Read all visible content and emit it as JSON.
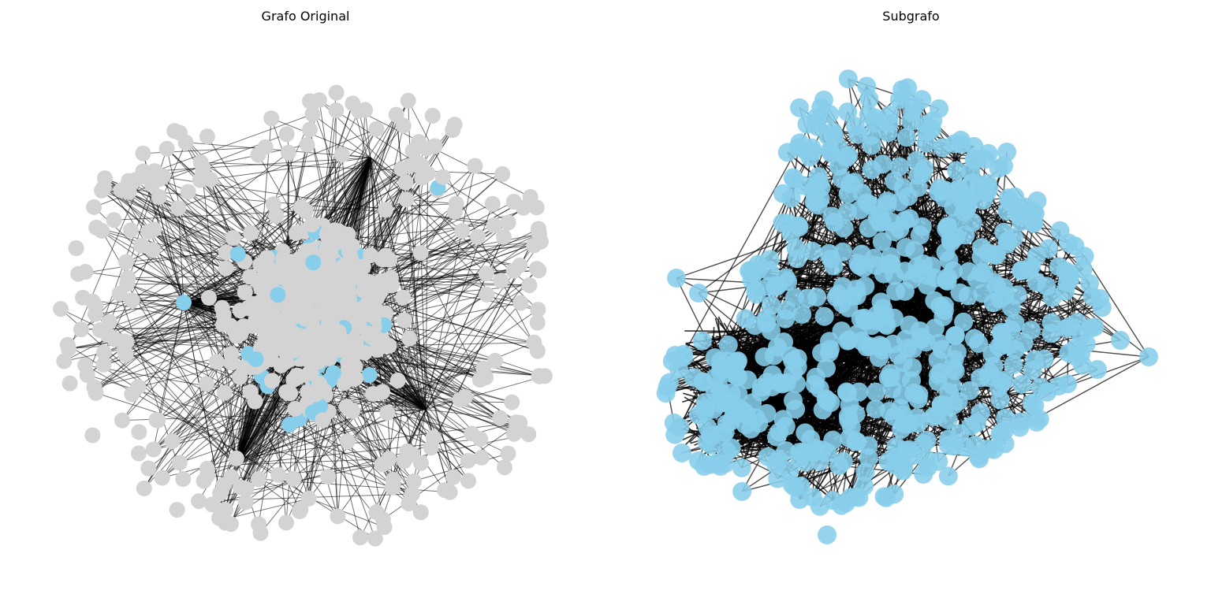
{
  "figure": {
    "panels": [
      {
        "title": "Grafo Original",
        "node_colors": [
          "#d3d3d3",
          "#87ceeb"
        ],
        "edge_color": "#000000"
      },
      {
        "title": "Subgrafo",
        "node_colors": [
          "#87ceeb"
        ],
        "edge_color": "#000000"
      }
    ]
  }
}
